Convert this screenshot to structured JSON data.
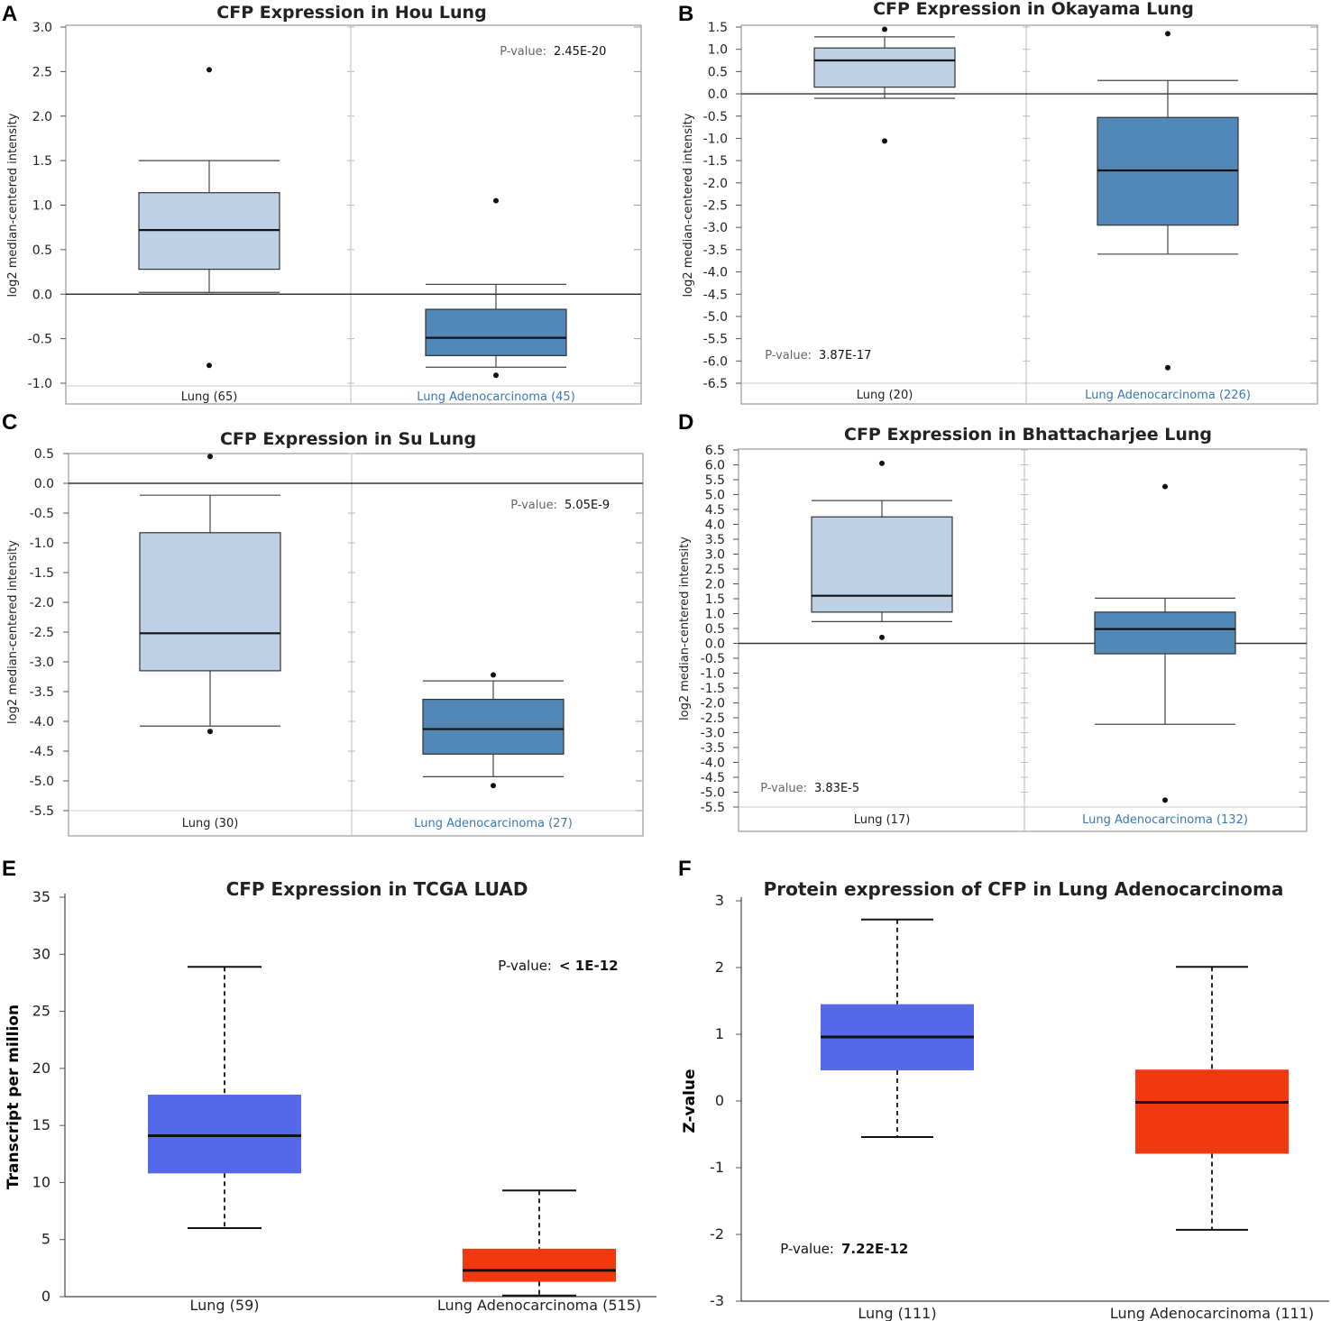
{
  "panel_letters": [
    "A",
    "B",
    "C",
    "D",
    "E",
    "F"
  ],
  "colors": {
    "normal_light": "#bdd0e5",
    "tumor_dark": "#5288b8",
    "normal_blue": "#5468e8",
    "tumor_red": "#f2380f",
    "tumor_label": "#3a78b8"
  },
  "chart_data": [
    {
      "panel": "A",
      "type": "box",
      "title": "CFP Expression in Hou Lung",
      "ylabel": "log2 median-centered intensity",
      "ylim": [
        -1.0,
        3.0
      ],
      "ticks": [
        "3.0",
        "2.5",
        "2.0",
        "1.5",
        "1.0",
        "0.5",
        "0.0",
        "-0.5",
        "-1.0"
      ],
      "tick_values": [
        3.0,
        2.5,
        2.0,
        1.5,
        1.0,
        0.5,
        0.0,
        -0.5,
        -1.0
      ],
      "p_label": "P-value:",
      "p_value": "2.45E-20",
      "groups": [
        {
          "name": "Lung (65)",
          "min": 0.02,
          "q1": 0.28,
          "median": 0.72,
          "q3": 1.14,
          "max": 1.5,
          "outliers": [
            2.52,
            -0.8
          ]
        },
        {
          "name": "Lung Adenocarcinoma (45)",
          "min": -0.82,
          "q1": -0.69,
          "median": -0.49,
          "q3": -0.17,
          "max": 0.11,
          "outliers": [
            1.05,
            -0.91
          ]
        }
      ]
    },
    {
      "panel": "B",
      "type": "box",
      "title": "CFP Expression in Okayama Lung",
      "ylabel": "log2 median-centered intensity",
      "ylim": [
        -6.5,
        1.5
      ],
      "ticks": [
        "1.5",
        "1.0",
        "0.5",
        "0.0",
        "-0.5",
        "-1.0",
        "-1.5",
        "-2.0",
        "-2.5",
        "-3.0",
        "-3.5",
        "-4.0",
        "-4.5",
        "-5.0",
        "-5.5",
        "-6.0",
        "-6.5"
      ],
      "tick_values": [
        1.5,
        1.0,
        0.5,
        0.0,
        -0.5,
        -1.0,
        -1.5,
        -2.0,
        -2.5,
        -3.0,
        -3.5,
        -4.0,
        -4.5,
        -5.0,
        -5.5,
        -6.0,
        -6.5
      ],
      "p_label": "P-value:",
      "p_value": "3.87E-17",
      "groups": [
        {
          "name": "Lung (20)",
          "min": -0.1,
          "q1": 0.15,
          "median": 0.75,
          "q3": 1.03,
          "max": 1.28,
          "outliers": [
            1.45,
            -1.06
          ]
        },
        {
          "name": "Lung Adenocarcinoma (226)",
          "min": -3.6,
          "q1": -2.95,
          "median": -1.72,
          "q3": -0.53,
          "max": 0.3,
          "outliers": [
            1.35,
            -6.15
          ]
        }
      ]
    },
    {
      "panel": "C",
      "type": "box",
      "title": "CFP Expression in Su Lung",
      "ylabel": "log2 median-centered intensity",
      "ylim": [
        -5.5,
        0.5
      ],
      "ticks": [
        "0.5",
        "0.0",
        "-0.5",
        "-1.0",
        "-1.5",
        "-2.0",
        "-2.5",
        "-3.0",
        "-3.5",
        "-4.0",
        "-4.5",
        "-5.0",
        "-5.5"
      ],
      "tick_values": [
        0.5,
        0.0,
        -0.5,
        -1.0,
        -1.5,
        -2.0,
        -2.5,
        -3.0,
        -3.5,
        -4.0,
        -4.5,
        -5.0,
        -5.5
      ],
      "p_label": "P-value:",
      "p_value": "5.05E-9",
      "groups": [
        {
          "name": "Lung (30)",
          "min": -4.08,
          "q1": -3.15,
          "median": -2.52,
          "q3": -0.83,
          "max": -0.2,
          "outliers": [
            0.45,
            -4.17
          ]
        },
        {
          "name": "Lung Adenocarcinoma (27)",
          "min": -4.93,
          "q1": -4.55,
          "median": -4.13,
          "q3": -3.63,
          "max": -3.32,
          "outliers": [
            -3.22,
            -5.08
          ]
        }
      ]
    },
    {
      "panel": "D",
      "type": "box",
      "title": "CFP Expression in Bhattacharjee Lung",
      "ylabel": "log2 median-centered intensity",
      "ylim": [
        -5.5,
        6.5
      ],
      "ticks": [
        "6.5",
        "6.0",
        "5.5",
        "5.0",
        "4.5",
        "4.0",
        "3.5",
        "3.0",
        "2.5",
        "2.0",
        "1.5",
        "1.0",
        "0.5",
        "0.0",
        "-0.5",
        "-1.0",
        "-1.5",
        "-2.0",
        "-2.5",
        "-3.0",
        "-3.5",
        "-4.0",
        "-4.5",
        "-5.0",
        "-5.5"
      ],
      "tick_values": [
        6.5,
        6.0,
        5.5,
        5.0,
        4.5,
        4.0,
        3.5,
        3.0,
        2.5,
        2.0,
        1.5,
        1.0,
        0.5,
        0.0,
        -0.5,
        -1.0,
        -1.5,
        -2.0,
        -2.5,
        -3.0,
        -3.5,
        -4.0,
        -4.5,
        -5.0,
        -5.5
      ],
      "p_label": "P-value:",
      "p_value": "3.83E-5",
      "groups": [
        {
          "name": "Lung (17)",
          "min": 0.73,
          "q1": 1.05,
          "median": 1.6,
          "q3": 4.25,
          "max": 4.8,
          "outliers": [
            6.05,
            0.2
          ]
        },
        {
          "name": "Lung Adenocarcinoma (132)",
          "min": -2.72,
          "q1": -0.35,
          "median": 0.48,
          "q3": 1.05,
          "max": 1.52,
          "outliers": [
            5.27,
            -5.27
          ]
        }
      ]
    },
    {
      "panel": "E",
      "type": "box",
      "title": "CFP Expression in TCGA LUAD",
      "ylabel": "Transcript per million",
      "ylim": [
        0,
        35
      ],
      "ticks": [
        "35",
        "30",
        "25",
        "20",
        "15",
        "10",
        "5",
        "0"
      ],
      "tick_values": [
        35,
        30,
        25,
        20,
        15,
        10,
        5,
        0
      ],
      "p_label": "P-value:",
      "p_value": "< 1E-12",
      "groups": [
        {
          "name": "Lung (59)",
          "min": 6.0,
          "q1": 10.8,
          "median": 14.1,
          "q3": 17.7,
          "max": 28.9
        },
        {
          "name": "Lung Adenocarcinoma (515)",
          "min": 0.1,
          "q1": 1.3,
          "median": 2.3,
          "q3": 4.2,
          "max": 9.3
        }
      ]
    },
    {
      "panel": "F",
      "type": "box",
      "title": "Protein expression of CFP in Lung Adenocarcinoma",
      "ylabel": "Z-value",
      "ylim": [
        -3,
        3
      ],
      "ticks": [
        "3",
        "2",
        "1",
        "0",
        "-1",
        "-2",
        "-3"
      ],
      "tick_values": [
        3,
        2,
        1,
        0,
        -1,
        -2,
        -3
      ],
      "p_label": "P-value:",
      "p_value": "7.22E-12",
      "groups": [
        {
          "name": "Lung (111)",
          "min": -0.54,
          "q1": 0.46,
          "median": 0.96,
          "q3": 1.45,
          "max": 2.72
        },
        {
          "name": "Lung Adenocarcinoma    (111)",
          "min": -1.93,
          "q1": -0.79,
          "median": -0.02,
          "q3": 0.47,
          "max": 2.01
        }
      ]
    }
  ]
}
